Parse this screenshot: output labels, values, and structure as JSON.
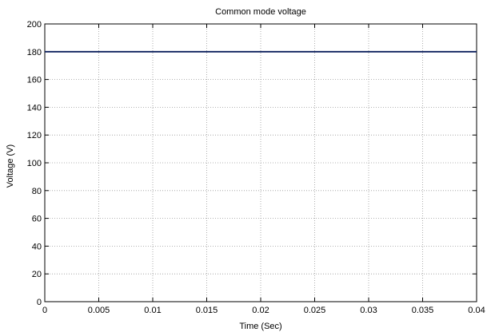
{
  "chart_data": {
    "type": "line",
    "title": "Common mode voltage",
    "xlabel": "Time (Sec)",
    "ylabel": "Voltage (V)",
    "xlim": [
      0,
      0.04
    ],
    "ylim": [
      0,
      200
    ],
    "xticks": [
      "0",
      "0.005",
      "0.01",
      "0.015",
      "0.02",
      "0.025",
      "0.03",
      "0.035",
      "0.04"
    ],
    "yticks": [
      "0",
      "20",
      "40",
      "60",
      "80",
      "100",
      "120",
      "140",
      "160",
      "180",
      "200"
    ],
    "grid": true,
    "series": [
      {
        "color": "#0a1f5c",
        "x": [
          0,
          0.04
        ],
        "y": [
          180,
          180
        ]
      }
    ]
  }
}
